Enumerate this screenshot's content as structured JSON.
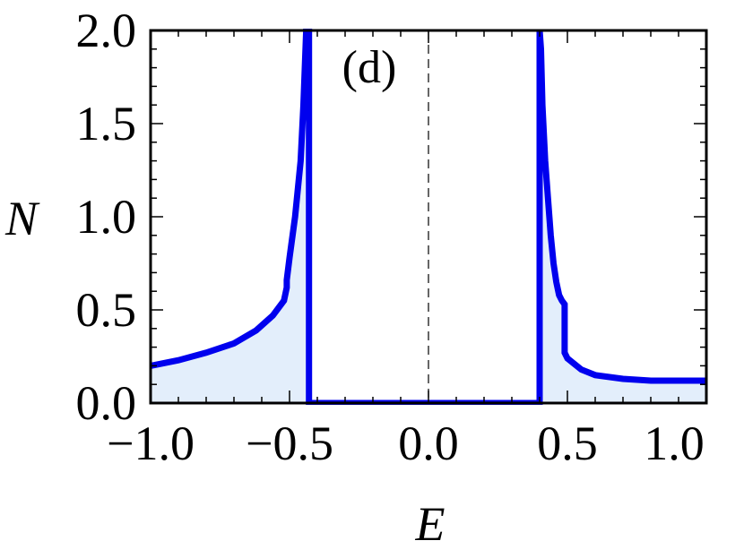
{
  "chart_data": {
    "type": "area",
    "panel_label": "(d)",
    "xlabel": "E",
    "ylabel": "N",
    "xlim": [
      -1.0,
      1.0
    ],
    "ylim": [
      0.0,
      2.0
    ],
    "x_ticks": [
      "−1.0",
      "−0.5",
      "0.0",
      "0.5",
      "1.0"
    ],
    "x_tick_values": [
      -1.0,
      -0.5,
      0.0,
      0.5,
      1.0
    ],
    "y_ticks": [
      "0.0",
      "0.5",
      "1.0",
      "1.5",
      "2.0"
    ],
    "y_tick_values": [
      0.0,
      0.5,
      1.0,
      1.5,
      2.0
    ],
    "reference_line_x": 0.0,
    "line_color": "#0000ee",
    "fill_color": "#e3eefb",
    "series": [
      {
        "x": [
          -1.0,
          -0.9,
          -0.8,
          -0.7,
          -0.62,
          -0.56,
          -0.52,
          -0.51,
          -0.51,
          -0.5,
          -0.48,
          -0.46,
          -0.45,
          -0.44,
          -0.435,
          -0.43,
          -0.43,
          -0.43,
          0.0,
          0.4,
          0.4,
          0.4,
          0.405,
          0.41,
          0.42,
          0.43,
          0.44,
          0.45,
          0.46,
          0.47,
          0.48,
          0.49,
          0.49,
          0.5,
          0.55,
          0.6,
          0.7,
          0.8,
          0.9,
          1.0
        ],
        "y": [
          0.2,
          0.23,
          0.27,
          0.32,
          0.39,
          0.47,
          0.55,
          0.62,
          0.66,
          0.78,
          1.0,
          1.3,
          1.6,
          2.0,
          2.0,
          2.0,
          0.0,
          0.0,
          0.0,
          0.0,
          2.0,
          2.0,
          1.9,
          1.6,
          1.3,
          1.1,
          0.9,
          0.75,
          0.65,
          0.58,
          0.55,
          0.53,
          0.27,
          0.24,
          0.18,
          0.15,
          0.13,
          0.12,
          0.12,
          0.12
        ]
      }
    ]
  }
}
